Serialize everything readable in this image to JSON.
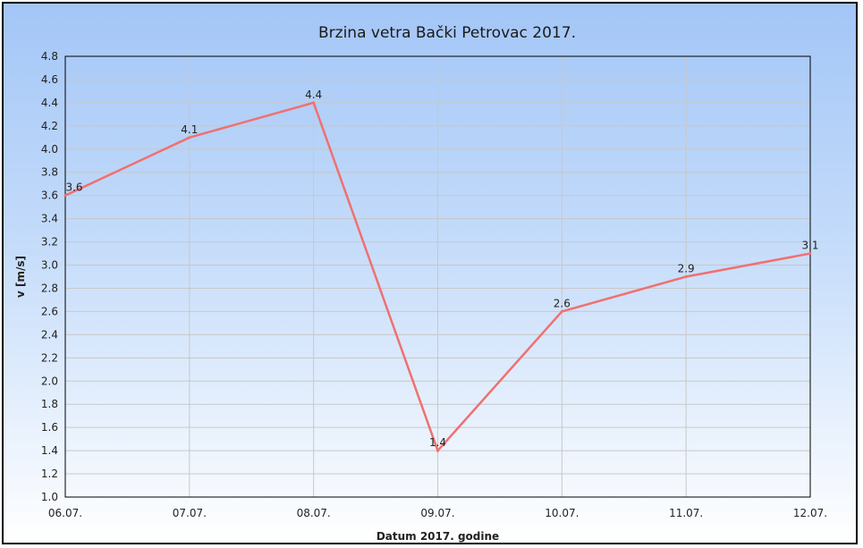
{
  "chart_data": {
    "type": "line",
    "title": "Brzina vetra Bački Petrovac 2017.",
    "xlabel": "Datum 2017. godine",
    "ylabel": "v [m/s]",
    "categories": [
      "06.07.",
      "07.07.",
      "08.07.",
      "09.07.",
      "10.07.",
      "11.07.",
      "12.07."
    ],
    "series": [
      {
        "values": [
          3.6,
          4.1,
          4.4,
          1.4,
          2.6,
          2.9,
          3.1
        ],
        "labels": [
          "3.6",
          "4.1",
          "4.4",
          "1.4",
          "2.6",
          "2.9",
          "3.1"
        ],
        "color": "#f07070"
      }
    ],
    "ylim": [
      1.0,
      4.8
    ],
    "yticks": [
      "1.0",
      "1.2",
      "1.4",
      "1.6",
      "1.8",
      "2.0",
      "2.2",
      "2.4",
      "2.6",
      "2.8",
      "3.0",
      "3.2",
      "3.4",
      "3.6",
      "3.8",
      "4.0",
      "4.2",
      "4.4",
      "4.6",
      "4.8"
    ],
    "grid": true,
    "legend": "none",
    "colors": {
      "background_top": "#a3c6f7",
      "background_bottom": "#ffffff",
      "line": "#f07070",
      "grid": "#c8c8c8"
    }
  }
}
